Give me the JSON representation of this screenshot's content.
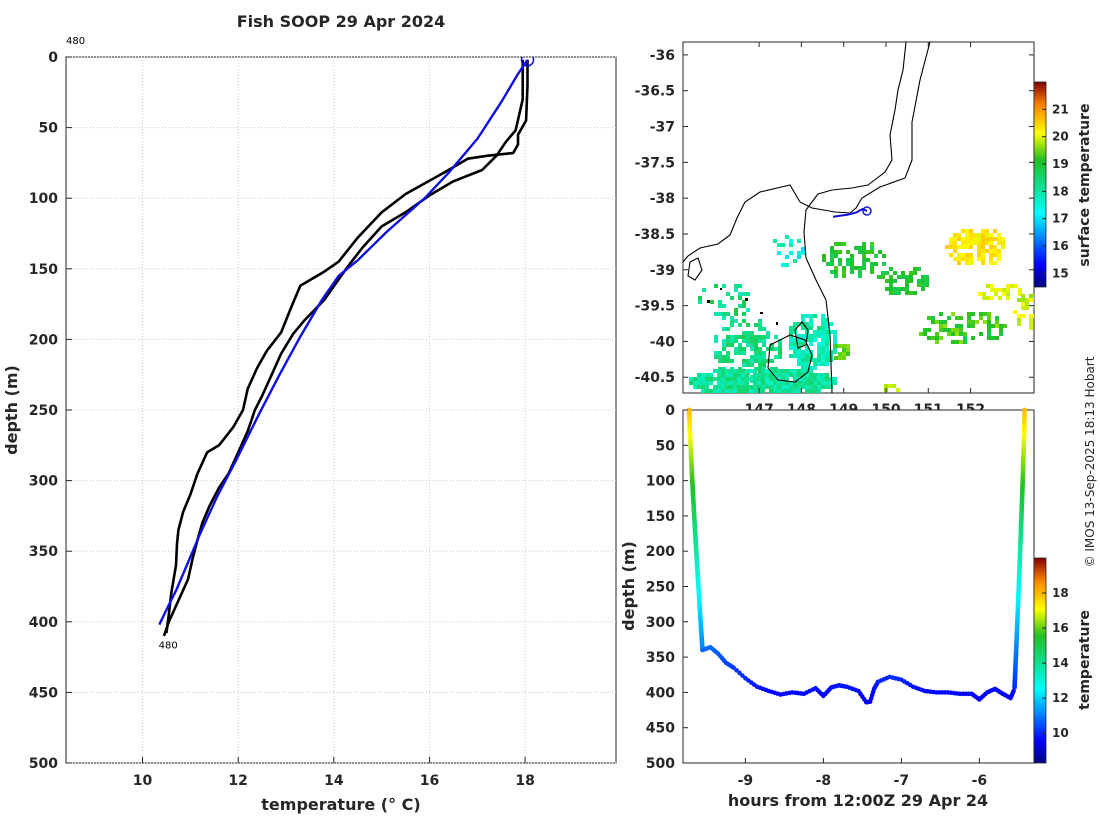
{
  "title": "Fish SOOP 29 Apr 2024",
  "credit": "© IMOS 13-Sep-2025 18:13 Hobart",
  "chart_data": [
    {
      "id": "profile",
      "type": "line",
      "title": "Fish SOOP 29 Apr 2024",
      "xlabel": "temperature (° C)",
      "ylabel": "depth (m)",
      "xlim": [
        8.4,
        19.9
      ],
      "ylim": [
        500,
        0
      ],
      "xticks": [
        10,
        12,
        14,
        16,
        18
      ],
      "yticks": [
        0,
        50,
        100,
        150,
        200,
        250,
        300,
        350,
        400,
        450,
        500
      ],
      "annotations": [
        {
          "text": "480",
          "x": 8.4,
          "y": -12
        },
        {
          "text": "480",
          "x": 10.4,
          "y": 416
        }
      ],
      "series": [
        {
          "name": "blue profile",
          "color": "#1010e0",
          "x": [
            18.05,
            17.85,
            17.5,
            17.0,
            16.4,
            15.9,
            15.5,
            15.1,
            14.8,
            14.5,
            14.1,
            13.75,
            13.3,
            12.85,
            12.45,
            11.95,
            11.55,
            11.2,
            10.9,
            10.7,
            10.55,
            10.35
          ],
          "y": [
            2,
            12,
            32,
            58,
            82,
            100,
            112,
            124,
            134,
            144,
            155,
            172,
            198,
            226,
            252,
            286,
            312,
            338,
            362,
            378,
            388,
            402
          ]
        },
        {
          "name": "black profile 1",
          "color": "#000000",
          "x": [
            18.05,
            18.05,
            18.02,
            17.85,
            17.85,
            17.75,
            17.2,
            16.8,
            16.3,
            15.5,
            15.0,
            14.5,
            14.1,
            13.8,
            13.3,
            13.1,
            12.9,
            12.6,
            12.4,
            12.2,
            12.1,
            11.9,
            11.6,
            11.35,
            11.15,
            11.0,
            10.85,
            10.75,
            10.72,
            10.7,
            10.6,
            10.55,
            10.5
          ],
          "y": [
            2,
            20,
            45,
            55,
            62,
            68,
            70,
            72,
            82,
            97,
            110,
            128,
            145,
            152,
            162,
            178,
            195,
            208,
            220,
            235,
            250,
            262,
            275,
            280,
            295,
            310,
            322,
            335,
            345,
            360,
            380,
            395,
            408
          ]
        },
        {
          "name": "black profile 2",
          "color": "#000000",
          "x": [
            17.95,
            17.95,
            17.8,
            17.6,
            17.4,
            17.1,
            16.5,
            16.0,
            15.5,
            15.0,
            14.6,
            14.3,
            14.05,
            13.8,
            13.4,
            13.15,
            12.9,
            12.7,
            12.5,
            12.35,
            12.2,
            12.0,
            11.8,
            11.6,
            11.4,
            11.25,
            11.15,
            11.05,
            10.95,
            10.75,
            10.55,
            10.45
          ],
          "y": [
            2,
            30,
            52,
            60,
            70,
            80,
            88,
            98,
            110,
            120,
            135,
            148,
            160,
            172,
            186,
            196,
            210,
            225,
            240,
            250,
            265,
            280,
            295,
            305,
            318,
            330,
            342,
            355,
            370,
            385,
            400,
            410
          ]
        }
      ],
      "markers": [
        {
          "name": "start",
          "shape": "circle",
          "x": 18.05,
          "y": 2
        }
      ]
    },
    {
      "id": "map",
      "type": "heatmap",
      "xlim": [
        145.2,
        153.5
      ],
      "ylim": [
        -40.72,
        -35.82
      ],
      "xticks": [
        "147",
        "148",
        "149",
        "150",
        "151",
        "152"
      ],
      "yticks": [
        "-36",
        "-36.5",
        "-37",
        "-37.5",
        "-38",
        "-38.5",
        "-39",
        "-39.5",
        "-40",
        "-40.5"
      ],
      "colorbar": {
        "label": "surface temperature",
        "ticks": [
          "15",
          "16",
          "17",
          "18",
          "19",
          "20",
          "21"
        ],
        "min": 14.5,
        "max": 22.0
      },
      "track": {
        "lon": [
          148.75,
          149.1,
          149.3,
          149.45,
          149.55
        ],
        "lat": [
          -38.26,
          -38.23,
          -38.2,
          -38.15,
          -38.18
        ]
      }
    },
    {
      "id": "section",
      "type": "scatter",
      "xlabel": "hours from 12:00Z 29 Apr 24",
      "ylabel": "depth (m)",
      "xlim": [
        -9.8,
        -5.3
      ],
      "ylim": [
        500,
        0
      ],
      "xticks": [
        "-9",
        "-8",
        "-7",
        "-6"
      ],
      "yticks": [
        "0",
        "50",
        "100",
        "150",
        "200",
        "250",
        "300",
        "350",
        "400",
        "450",
        "500"
      ],
      "colorbar": {
        "label": "temperature",
        "ticks": [
          "10",
          "12",
          "14",
          "16",
          "18"
        ],
        "min": 8.3,
        "max": 20.0
      },
      "bottom_path": {
        "hours": [
          -9.55,
          -9.45,
          -9.35,
          -9.25,
          -9.15,
          -9.0,
          -8.85,
          -8.7,
          -8.55,
          -8.4,
          -8.25,
          -8.1,
          -8.0,
          -7.9,
          -7.8,
          -7.7,
          -7.55,
          -7.45,
          -7.4,
          -7.35,
          -7.3,
          -7.15,
          -7.0,
          -6.85,
          -6.7,
          -6.55,
          -6.4,
          -6.25,
          -6.1,
          -6.0,
          -5.9,
          -5.8,
          -5.7,
          -5.6,
          -5.55
        ],
        "depth": [
          340,
          336,
          345,
          358,
          365,
          380,
          392,
          398,
          403,
          400,
          402,
          394,
          405,
          393,
          390,
          392,
          398,
          414,
          413,
          395,
          385,
          378,
          382,
          392,
          398,
          400,
          400,
          402,
          402,
          410,
          400,
          395,
          402,
          408,
          395
        ]
      }
    }
  ]
}
